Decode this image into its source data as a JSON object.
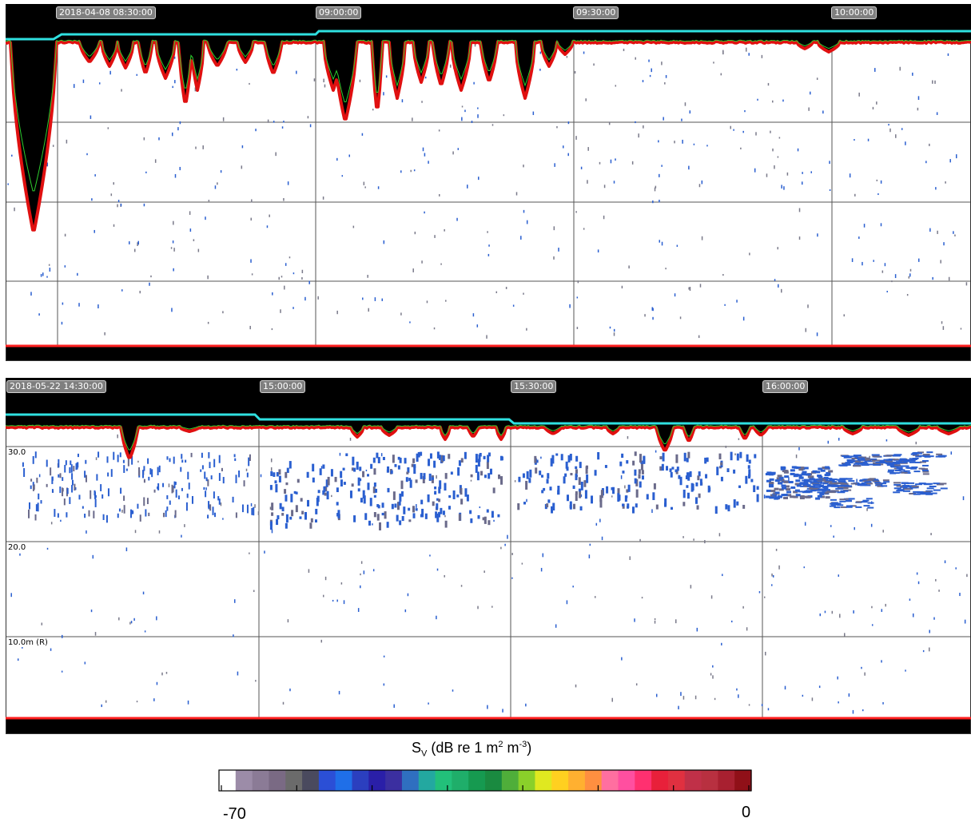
{
  "panel_top": {
    "time_labels": [
      "2018-04-08 08:30:00",
      "09:00:00",
      "09:30:00",
      "10:00:00"
    ]
  },
  "panel_bottom": {
    "time_labels": [
      "2018-05-22 14:30:00",
      "15:00:00",
      "15:30:00",
      "16:00:00"
    ],
    "depth_labels": [
      "30.0",
      "20.0",
      "10.0m (R)"
    ]
  },
  "colorbar": {
    "title_main": "S",
    "title_sub": "V",
    "title_mid": " (dB re 1 m",
    "title_sup1": "2",
    "title_space": " m",
    "title_sup2": "-3",
    "title_end": ")",
    "min_label": "-70",
    "max_label": "0",
    "colors": [
      "#ffffff",
      "#9c8ca8",
      "#8b7b96",
      "#7a6a84",
      "#6b6b6b",
      "#4a4a5e",
      "#2b4fd6",
      "#1f6fe8",
      "#2b3fbf",
      "#2a1fa8",
      "#3b2fa0",
      "#2f6fc0",
      "#23a8a0",
      "#22c07a",
      "#1fae6a",
      "#169a50",
      "#1a8a40",
      "#4fae3a",
      "#8ad02a",
      "#e0e820",
      "#ffd020",
      "#ffb030",
      "#ff8f40",
      "#ff6fa0",
      "#ff4fa0",
      "#ff3070",
      "#e8203a",
      "#e03040",
      "#c03048",
      "#b83040",
      "#a82030",
      "#901018"
    ]
  },
  "colors": {
    "surface_line": "#2fe0e0",
    "bottom_line": "#ff2020",
    "exclusion_line": "#e01010",
    "fill": "#000000",
    "target_blue": "#2a5fd0",
    "green_line": "#2ecc2e"
  }
}
